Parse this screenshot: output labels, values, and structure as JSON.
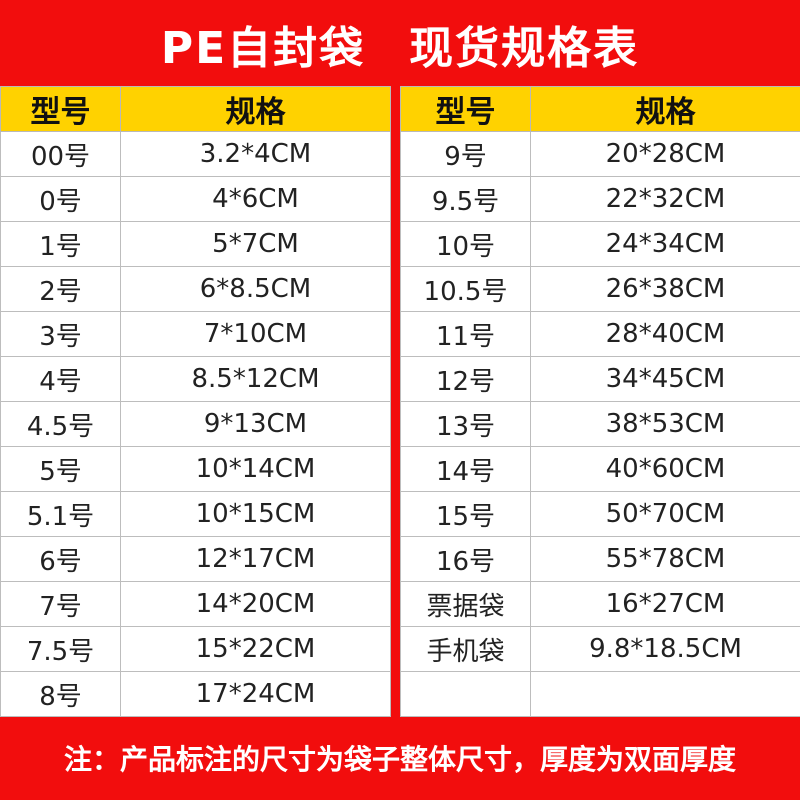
{
  "title": {
    "part1": "PE自封袋",
    "part2": "现货规格表"
  },
  "table_left": {
    "headers": [
      "型号",
      "规格"
    ],
    "rows": [
      [
        "00号",
        "3.2*4CM"
      ],
      [
        "0号",
        "4*6CM"
      ],
      [
        "1号",
        "5*7CM"
      ],
      [
        "2号",
        "6*8.5CM"
      ],
      [
        "3号",
        "7*10CM"
      ],
      [
        "4号",
        "8.5*12CM"
      ],
      [
        "4.5号",
        "9*13CM"
      ],
      [
        "5号",
        "10*14CM"
      ],
      [
        "5.1号",
        "10*15CM"
      ],
      [
        "6号",
        "12*17CM"
      ],
      [
        "7号",
        "14*20CM"
      ],
      [
        "7.5号",
        "15*22CM"
      ],
      [
        "8号",
        "17*24CM"
      ]
    ]
  },
  "table_right": {
    "headers": [
      "型号",
      "规格"
    ],
    "rows": [
      [
        "9号",
        "20*28CM"
      ],
      [
        "9.5号",
        "22*32CM"
      ],
      [
        "10号",
        "24*34CM"
      ],
      [
        "10.5号",
        "26*38CM"
      ],
      [
        "11号",
        "28*40CM"
      ],
      [
        "12号",
        "34*45CM"
      ],
      [
        "13号",
        "38*53CM"
      ],
      [
        "14号",
        "40*60CM"
      ],
      [
        "15号",
        "50*70CM"
      ],
      [
        "16号",
        "55*78CM"
      ],
      [
        "票据袋",
        "16*27CM"
      ],
      [
        "手机袋",
        "9.8*18.5CM"
      ],
      [
        "",
        ""
      ]
    ]
  },
  "footer": {
    "note": "注：产品标注的尺寸为袋子整体尺寸，厚度为双面厚度"
  },
  "colors": {
    "background": "#f20d0d",
    "header_fill": "#ffd200",
    "cell_fill": "#ffffff"
  }
}
